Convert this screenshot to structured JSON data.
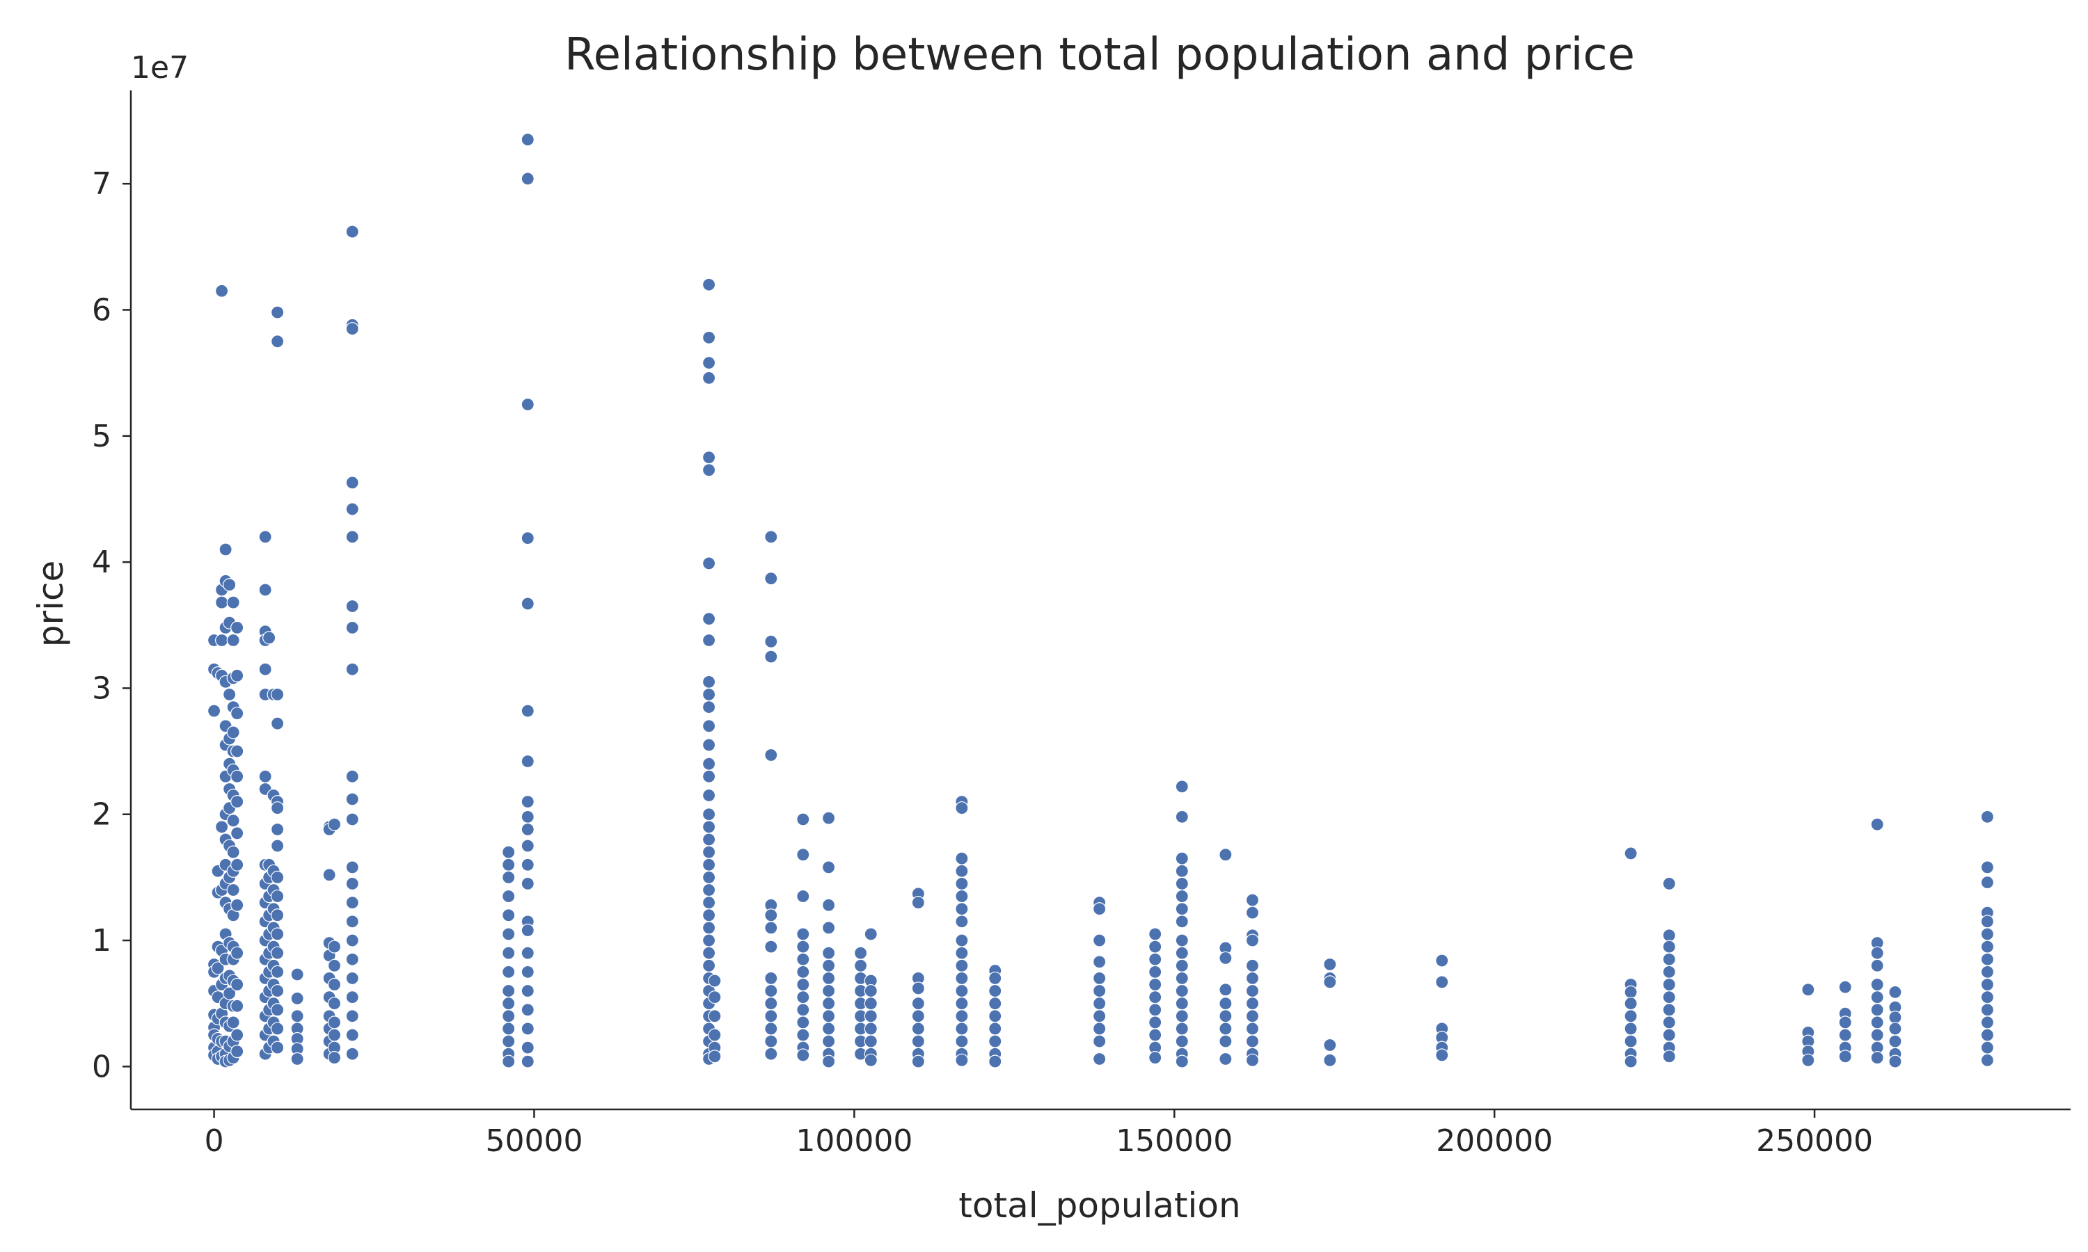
{
  "chart_data": {
    "type": "scatter",
    "title": "Relationship between total population and price",
    "xlabel": "total_population",
    "ylabel": "price",
    "y_offset_label": "1e7",
    "xlim": [
      -13000,
      290000
    ],
    "ylim": [
      -3400000,
      77400000
    ],
    "xticks": [
      0,
      50000,
      100000,
      150000,
      200000,
      250000
    ],
    "xtick_labels": [
      "0",
      "50000",
      "100000",
      "150000",
      "200000",
      "250000"
    ],
    "yticks": [
      0,
      10000000,
      20000000,
      30000000,
      40000000,
      50000000,
      60000000,
      70000000
    ],
    "ytick_labels": [
      "0",
      "1",
      "2",
      "3",
      "4",
      "5",
      "6",
      "7"
    ],
    "grid": false,
    "legend": "none",
    "colors": {
      "point": "#4c72b0",
      "axis": "#262626",
      "background": "#ffffff"
    },
    "series": [
      {
        "columns": [
          {
            "x": 0,
            "ys": [
              33.8,
              31.5,
              28.2,
              8.1,
              7.5,
              6.0,
              4.1,
              3.1,
              2.5,
              1.5,
              0.9
            ]
          },
          {
            "x": 600,
            "ys": [
              31.2,
              15.5,
              13.8,
              9.5,
              7.8,
              5.5,
              3.8,
              2.2,
              1.2,
              0.6
            ]
          },
          {
            "x": 1200,
            "ys": [
              61.5,
              37.8,
              36.8,
              33.8,
              31.0,
              19.0,
              14.0,
              9.2,
              6.5,
              4.2,
              2.0,
              0.8
            ]
          },
          {
            "x": 1800,
            "ys": [
              41.0,
              38.5,
              34.8,
              30.5,
              27.0,
              25.5,
              23.0,
              20.0,
              18.0,
              16.0,
              14.5,
              13.0,
              10.5,
              8.5,
              7.0,
              5.0,
              3.5,
              2.0,
              1.0,
              0.4
            ]
          },
          {
            "x": 2400,
            "ys": [
              38.2,
              35.2,
              29.5,
              26.0,
              24.0,
              22.0,
              20.5,
              17.5,
              15.0,
              12.5,
              9.8,
              7.2,
              5.8,
              3.2,
              1.6,
              0.5
            ]
          },
          {
            "x": 3000,
            "ys": [
              36.8,
              33.8,
              30.8,
              28.5,
              26.5,
              25.0,
              23.5,
              21.5,
              19.5,
              17.0,
              15.5,
              14.0,
              12.0,
              9.5,
              8.5,
              6.8,
              4.8,
              3.5,
              2.0,
              0.7
            ]
          },
          {
            "x": 3600,
            "ys": [
              34.8,
              31.0,
              28.0,
              25.0,
              23.0,
              21.0,
              18.5,
              16.0,
              12.8,
              9.0,
              6.5,
              4.8,
              2.5,
              1.2
            ]
          },
          {
            "x": 8000,
            "ys": [
              42.0,
              37.8,
              34.5,
              33.8,
              31.5,
              29.5,
              23.0,
              22.0,
              16.0,
              14.5,
              13.0,
              11.5,
              10.0,
              8.5,
              7.0,
              5.5,
              4.0,
              2.5,
              1.0
            ]
          },
          {
            "x": 8600,
            "ys": [
              34.0,
              16.0,
              15.0,
              13.5,
              12.0,
              10.5,
              9.0,
              7.5,
              6.0,
              4.5,
              3.0,
              1.5
            ]
          },
          {
            "x": 9300,
            "ys": [
              29.5,
              21.5,
              15.5,
              14.0,
              12.5,
              11.0,
              9.5,
              8.0,
              6.5,
              5.0,
              3.5,
              2.0
            ]
          },
          {
            "x": 9900,
            "ys": [
              59.8,
              57.5,
              29.5,
              27.2,
              21.0,
              20.5,
              18.8,
              17.5,
              15.0,
              13.5,
              12.0,
              10.5,
              9.0,
              7.5,
              6.0,
              4.5,
              3.0,
              1.5
            ]
          },
          {
            "x": 13000,
            "ys": [
              7.3,
              5.4,
              4.0,
              3.0,
              2.2,
              1.4,
              0.6
            ]
          },
          {
            "x": 18000,
            "ys": [
              19.0,
              18.8,
              15.2,
              9.8,
              8.8,
              7.0,
              5.5,
              4.0,
              3.0,
              2.0,
              1.0
            ]
          },
          {
            "x": 18800,
            "ys": [
              19.2,
              9.5,
              8.0,
              6.5,
              5.0,
              3.5,
              2.5,
              1.5,
              0.7
            ]
          },
          {
            "x": 21600,
            "ys": [
              66.2,
              58.8,
              58.5,
              46.3,
              44.2,
              42.0,
              36.5,
              34.8,
              31.5,
              23.0,
              21.2,
              19.6,
              15.8,
              14.5,
              13.0,
              11.5,
              10.0,
              8.5,
              7.0,
              5.5,
              4.0,
              2.5,
              1.0
            ]
          },
          {
            "x": 46000,
            "ys": [
              17.0,
              16.0,
              15.0,
              13.5,
              12.0,
              10.5,
              9.0,
              7.5,
              6.0,
              5.0,
              4.0,
              3.0,
              2.0,
              1.0,
              0.4
            ]
          },
          {
            "x": 49000,
            "ys": [
              73.5,
              70.4,
              52.5,
              41.9,
              36.7,
              28.2,
              24.2,
              21.0,
              19.8,
              18.8,
              17.5,
              16.0,
              14.5,
              11.5,
              10.8,
              9.0,
              7.5,
              6.0,
              4.5,
              3.0,
              1.5,
              0.4
            ]
          },
          {
            "x": 77300,
            "ys": [
              62.0,
              57.8,
              55.8,
              54.6,
              48.3,
              47.3,
              39.9,
              35.5,
              33.8,
              30.5,
              29.5,
              28.5,
              27.0,
              25.5,
              24.0,
              23.0,
              21.5,
              20.0,
              19.0,
              18.0,
              17.0,
              16.0,
              15.0,
              14.0,
              13.0,
              12.0,
              11.0,
              10.0,
              9.0,
              8.0,
              7.0,
              6.0,
              5.0,
              4.0,
              3.0,
              2.0,
              1.0,
              0.6
            ]
          },
          {
            "x": 78200,
            "ys": [
              6.8,
              5.5,
              4.0,
              2.5,
              1.5,
              0.8
            ]
          },
          {
            "x": 87000,
            "ys": [
              42.0,
              38.7,
              33.7,
              32.5,
              24.7,
              12.8,
              12.0,
              11.0,
              9.5,
              7.0,
              6.0,
              5.0,
              4.0,
              3.0,
              2.0,
              1.0
            ]
          },
          {
            "x": 92000,
            "ys": [
              19.6,
              16.8,
              13.5,
              10.5,
              9.5,
              8.5,
              7.5,
              6.5,
              5.5,
              4.5,
              3.5,
              2.5,
              1.5,
              0.9
            ]
          },
          {
            "x": 96000,
            "ys": [
              19.7,
              15.8,
              12.8,
              11.0,
              9.0,
              8.0,
              7.0,
              6.0,
              5.0,
              4.0,
              3.0,
              2.0,
              1.0,
              0.4
            ]
          },
          {
            "x": 101000,
            "ys": [
              9.0,
              8.0,
              7.0,
              6.0,
              5.0,
              4.0,
              3.0,
              2.0,
              1.0
            ]
          },
          {
            "x": 102600,
            "ys": [
              10.5,
              6.8,
              6.0,
              5.0,
              4.0,
              3.0,
              2.0,
              1.0,
              0.5
            ]
          },
          {
            "x": 110000,
            "ys": [
              13.7,
              13.0,
              7.0,
              6.2,
              5.0,
              4.0,
              3.0,
              2.0,
              1.0,
              0.4
            ]
          },
          {
            "x": 116800,
            "ys": [
              21.0,
              20.5,
              16.5,
              15.5,
              14.5,
              13.5,
              12.5,
              11.5,
              10.0,
              9.0,
              8.0,
              7.0,
              6.0,
              5.0,
              4.0,
              3.0,
              2.0,
              1.0,
              0.5
            ]
          },
          {
            "x": 122000,
            "ys": [
              7.6,
              7.0,
              6.0,
              5.0,
              4.0,
              3.0,
              2.0,
              1.0,
              0.4
            ]
          },
          {
            "x": 138300,
            "ys": [
              13.0,
              12.5,
              10.0,
              8.3,
              7.0,
              6.0,
              5.0,
              4.0,
              3.0,
              2.0,
              0.6
            ]
          },
          {
            "x": 147000,
            "ys": [
              10.5,
              9.5,
              8.5,
              7.5,
              6.5,
              5.5,
              4.5,
              3.5,
              2.5,
              1.5,
              0.7
            ]
          },
          {
            "x": 151200,
            "ys": [
              22.2,
              19.8,
              16.5,
              15.5,
              14.5,
              13.5,
              12.5,
              11.5,
              10.0,
              9.0,
              8.0,
              7.0,
              6.0,
              5.0,
              4.0,
              3.0,
              2.0,
              1.0,
              0.4
            ]
          },
          {
            "x": 158000,
            "ys": [
              16.8,
              9.4,
              8.6,
              6.1,
              5.0,
              4.0,
              3.0,
              2.0,
              0.6
            ]
          },
          {
            "x": 162200,
            "ys": [
              13.2,
              12.2,
              10.4,
              10.0,
              8.0,
              7.0,
              6.0,
              5.0,
              4.0,
              3.0,
              2.0,
              1.0,
              0.5
            ]
          },
          {
            "x": 174300,
            "ys": [
              8.1,
              7.0,
              6.7,
              1.7,
              0.5
            ]
          },
          {
            "x": 191800,
            "ys": [
              8.4,
              6.7,
              3.0,
              2.3,
              1.5,
              0.9
            ]
          },
          {
            "x": 221300,
            "ys": [
              16.9,
              6.5,
              5.9,
              5.0,
              4.0,
              3.0,
              2.0,
              1.0,
              0.4
            ]
          },
          {
            "x": 227300,
            "ys": [
              14.5,
              10.4,
              9.5,
              8.5,
              7.5,
              6.5,
              5.5,
              4.5,
              3.5,
              2.5,
              1.5,
              0.8
            ]
          },
          {
            "x": 249000,
            "ys": [
              6.1,
              2.7,
              2.0,
              1.2,
              0.5
            ]
          },
          {
            "x": 254800,
            "ys": [
              6.3,
              4.2,
              3.5,
              2.5,
              1.5,
              0.8
            ]
          },
          {
            "x": 259800,
            "ys": [
              19.2,
              9.8,
              9.0,
              8.0,
              6.5,
              5.5,
              4.5,
              3.5,
              2.5,
              1.5,
              0.7
            ]
          },
          {
            "x": 262600,
            "ys": [
              5.9,
              4.7,
              3.9,
              3.0,
              2.0,
              1.0,
              0.4
            ]
          },
          {
            "x": 277000,
            "ys": [
              19.8,
              15.8,
              14.6,
              12.2,
              11.5,
              10.5,
              9.5,
              8.5,
              7.5,
              6.5,
              5.5,
              4.5,
              3.5,
              2.5,
              1.5,
              0.5
            ]
          }
        ],
        "y_unit_multiplier": 1000000
      }
    ]
  }
}
